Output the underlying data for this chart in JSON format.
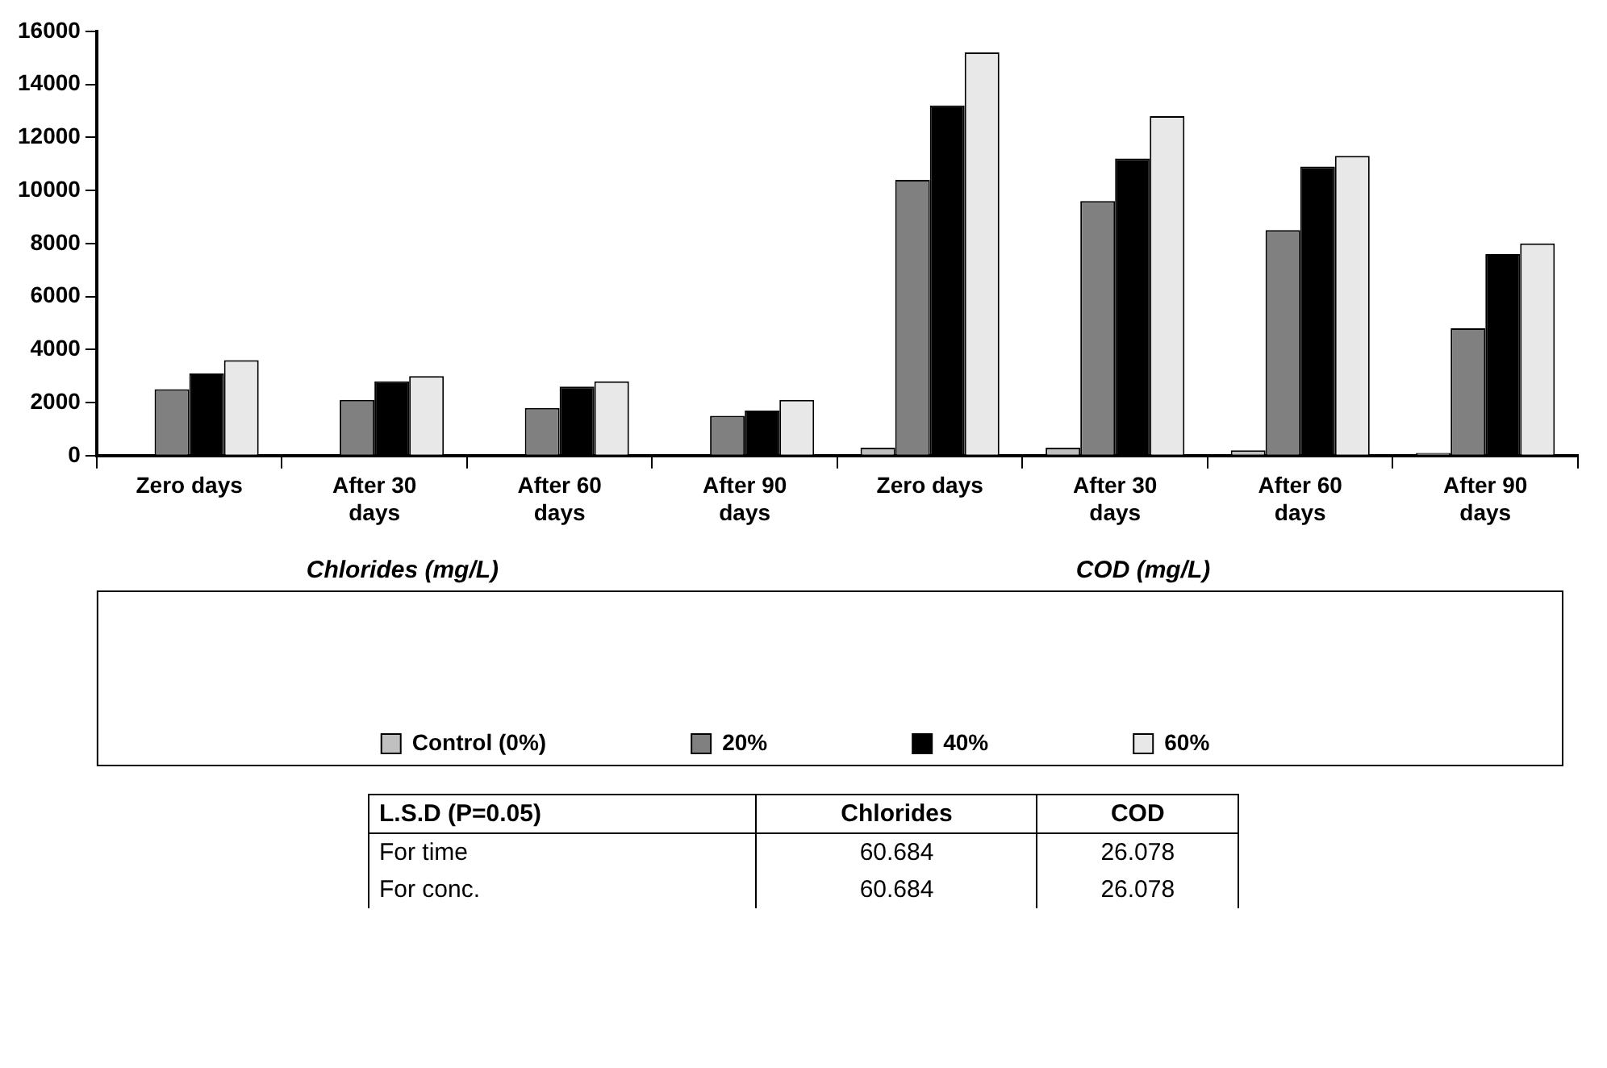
{
  "chart_data": {
    "type": "bar",
    "categories": [
      "Zero days",
      "After 30 days",
      "After 60 days",
      "After 90 days",
      "Zero days",
      "After 30 days",
      "After 60 days",
      "After 90 days"
    ],
    "series": [
      {
        "name": "Control (0%)",
        "color": "#c0c0c0",
        "values": [
          0,
          0,
          0,
          0,
          300,
          300,
          200,
          100
        ]
      },
      {
        "name": "20%",
        "color": "#808080",
        "values": [
          2500,
          2100,
          1800,
          1500,
          10400,
          9600,
          8500,
          4800
        ]
      },
      {
        "name": "40%",
        "color": "#000000",
        "values": [
          3100,
          2800,
          2600,
          1700,
          13200,
          11200,
          10900,
          7600
        ]
      },
      {
        "name": "60%",
        "color": "#e8e8e8",
        "values": [
          3600,
          3000,
          2800,
          2100,
          15200,
          12800,
          11300,
          8000
        ]
      }
    ],
    "ylim": [
      0,
      16000
    ],
    "yticks": [
      0,
      2000,
      4000,
      6000,
      8000,
      10000,
      12000,
      14000,
      16000
    ],
    "grid": false,
    "legend": "bottom",
    "annotations": [
      "Chlorides (mg/L)",
      "COD (mg/L)",
      "L.S.D (P=0.05)",
      "Chlorides",
      "COD",
      "For time",
      "60.684",
      "26.078",
      "For conc.",
      "60.684",
      "26.078"
    ]
  }
}
